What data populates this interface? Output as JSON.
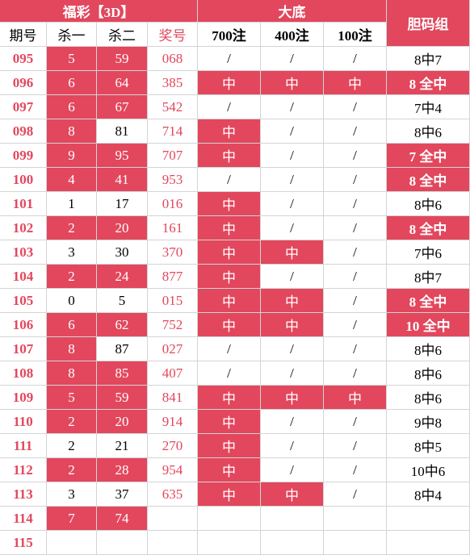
{
  "header": {
    "group1": "福彩【3D】",
    "group2": "大底",
    "group3": "胆码组",
    "columns": [
      "期号",
      "杀一",
      "杀二",
      "奖号",
      "700注",
      "400注",
      "100注"
    ]
  },
  "table": {
    "rows": [
      {
        "period": "095",
        "kill1": "5",
        "kill2": "59",
        "draw": "068",
        "d700": "/",
        "d400": "/",
        "d100": "/",
        "group": "8中7",
        "highlight": [
          "kill1",
          "kill2"
        ]
      },
      {
        "period": "096",
        "kill1": "6",
        "kill2": "64",
        "draw": "385",
        "d700": "中",
        "d400": "中",
        "d100": "中",
        "group": "8 全中",
        "highlight": [
          "kill1",
          "kill2",
          "d700",
          "d400",
          "d100",
          "group"
        ]
      },
      {
        "period": "097",
        "kill1": "6",
        "kill2": "67",
        "draw": "542",
        "d700": "/",
        "d400": "/",
        "d100": "/",
        "group": "7中4",
        "highlight": [
          "kill1",
          "kill2"
        ]
      },
      {
        "period": "098",
        "kill1": "8",
        "kill2": "81",
        "draw": "714",
        "d700": "中",
        "d400": "/",
        "d100": "/",
        "group": "8中6",
        "highlight": [
          "kill1",
          "d700"
        ]
      },
      {
        "period": "099",
        "kill1": "9",
        "kill2": "95",
        "draw": "707",
        "d700": "中",
        "d400": "/",
        "d100": "/",
        "group": "7 全中",
        "highlight": [
          "kill1",
          "kill2",
          "d700",
          "group"
        ]
      },
      {
        "period": "100",
        "kill1": "4",
        "kill2": "41",
        "draw": "953",
        "d700": "/",
        "d400": "/",
        "d100": "/",
        "group": "8 全中",
        "highlight": [
          "kill1",
          "kill2",
          "group"
        ]
      },
      {
        "period": "101",
        "kill1": "1",
        "kill2": "17",
        "draw": "016",
        "d700": "中",
        "d400": "/",
        "d100": "/",
        "group": "8中6",
        "highlight": [
          "d700"
        ]
      },
      {
        "period": "102",
        "kill1": "2",
        "kill2": "20",
        "draw": "161",
        "d700": "中",
        "d400": "/",
        "d100": "/",
        "group": "8 全中",
        "highlight": [
          "kill1",
          "kill2",
          "d700",
          "group"
        ]
      },
      {
        "period": "103",
        "kill1": "3",
        "kill2": "30",
        "draw": "370",
        "d700": "中",
        "d400": "中",
        "d100": "/",
        "group": "7中6",
        "highlight": [
          "d700",
          "d400"
        ]
      },
      {
        "period": "104",
        "kill1": "2",
        "kill2": "24",
        "draw": "877",
        "d700": "中",
        "d400": "/",
        "d100": "/",
        "group": "8中7",
        "highlight": [
          "kill1",
          "kill2",
          "d700"
        ]
      },
      {
        "period": "105",
        "kill1": "0",
        "kill2": "5",
        "draw": "015",
        "d700": "中",
        "d400": "中",
        "d100": "/",
        "group": "8 全中",
        "highlight": [
          "d700",
          "d400",
          "group"
        ]
      },
      {
        "period": "106",
        "kill1": "6",
        "kill2": "62",
        "draw": "752",
        "d700": "中",
        "d400": "中",
        "d100": "/",
        "group": "10 全中",
        "highlight": [
          "kill1",
          "kill2",
          "d700",
          "d400",
          "group"
        ]
      },
      {
        "period": "107",
        "kill1": "8",
        "kill2": "87",
        "draw": "027",
        "d700": "/",
        "d400": "/",
        "d100": "/",
        "group": "8中6",
        "highlight": [
          "kill1"
        ]
      },
      {
        "period": "108",
        "kill1": "8",
        "kill2": "85",
        "draw": "407",
        "d700": "/",
        "d400": "/",
        "d100": "/",
        "group": "8中6",
        "highlight": [
          "kill1",
          "kill2"
        ]
      },
      {
        "period": "109",
        "kill1": "5",
        "kill2": "59",
        "draw": "841",
        "d700": "中",
        "d400": "中",
        "d100": "中",
        "group": "8中6",
        "highlight": [
          "kill1",
          "kill2",
          "d700",
          "d400",
          "d100"
        ]
      },
      {
        "period": "110",
        "kill1": "2",
        "kill2": "20",
        "draw": "914",
        "d700": "中",
        "d400": "/",
        "d100": "/",
        "group": "9中8",
        "highlight": [
          "kill1",
          "kill2",
          "d700"
        ]
      },
      {
        "period": "111",
        "kill1": "2",
        "kill2": "21",
        "draw": "270",
        "d700": "中",
        "d400": "/",
        "d100": "/",
        "group": "8中5",
        "highlight": [
          "d700"
        ]
      },
      {
        "period": "112",
        "kill1": "2",
        "kill2": "28",
        "draw": "954",
        "d700": "中",
        "d400": "/",
        "d100": "/",
        "group": "10中6",
        "highlight": [
          "kill1",
          "kill2",
          "d700"
        ]
      },
      {
        "period": "113",
        "kill1": "3",
        "kill2": "37",
        "draw": "635",
        "d700": "中",
        "d400": "中",
        "d100": "/",
        "group": "8中4",
        "highlight": [
          "d700",
          "d400"
        ]
      },
      {
        "period": "114",
        "kill1": "7",
        "kill2": "74",
        "highlight": [
          "kill1",
          "kill2"
        ]
      },
      {
        "period": "115",
        "highlight": []
      }
    ]
  }
}
